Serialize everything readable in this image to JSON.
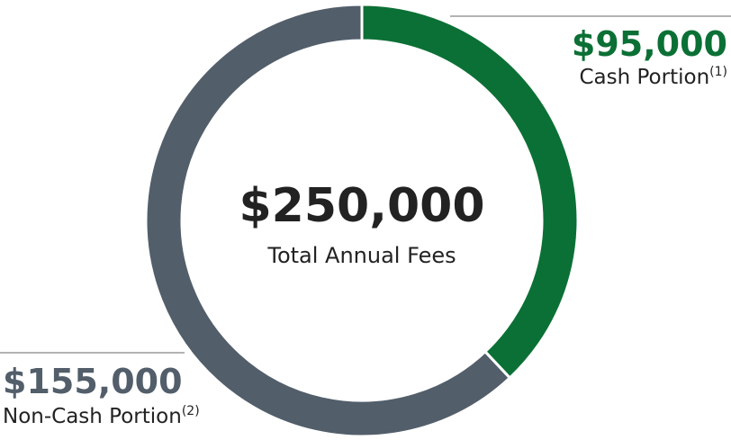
{
  "chart_data": {
    "type": "pie",
    "center_text": "$250,000",
    "center_subtitle": "Total Annual Fees",
    "categories": [
      "Cash Portion",
      "Non-Cash Portion"
    ],
    "category_notes": [
      "(1)",
      "(2)"
    ],
    "values": [
      95000,
      155000
    ],
    "value_labels": [
      "$95,000",
      "$155,000"
    ],
    "colors": [
      "#0b7035",
      "#525e6a"
    ]
  }
}
